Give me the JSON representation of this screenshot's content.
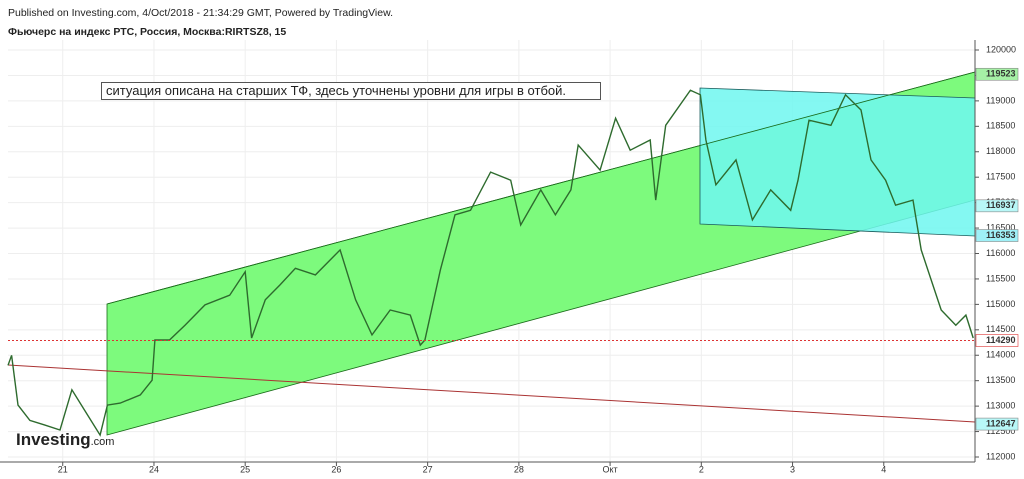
{
  "header": {
    "published": "Published on Investing.com, 4/Oct/2018 - 21:34:29 GMT, Powered by TradingView.",
    "symbol": "Фьючерс на индекс РТС, Россия, Москва:RIRTSZ8, 15"
  },
  "annotation": "ситуация описана на старших ТФ, здесь уточнены уровни для игры в отбой.",
  "logo": {
    "brand": "Investing",
    "suffix": ".com"
  },
  "chart_data": {
    "type": "line",
    "xlim": [
      -0.6,
      10.0
    ],
    "xticks": [
      {
        "value": 0,
        "label": "21"
      },
      {
        "value": 1,
        "label": "24"
      },
      {
        "value": 2,
        "label": "25"
      },
      {
        "value": 3,
        "label": "26"
      },
      {
        "value": 4,
        "label": "27"
      },
      {
        "value": 5,
        "label": "28"
      },
      {
        "value": 6,
        "label": "Окт"
      },
      {
        "value": 7,
        "label": "2"
      },
      {
        "value": 8,
        "label": "3"
      },
      {
        "value": 9,
        "label": "4"
      }
    ],
    "ylim": [
      112000,
      120000
    ],
    "yticks": [
      112000,
      112500,
      113000,
      113500,
      114000,
      114500,
      115000,
      115500,
      116000,
      116500,
      117000,
      117500,
      118000,
      118500,
      119000,
      119500,
      120000
    ],
    "series": [
      {
        "color": "#2e6b2e",
        "x": [
          -0.6,
          -0.56,
          -0.49,
          -0.36,
          -0.2,
          -0.03,
          0.1,
          0.24,
          0.41,
          0.49,
          0.63,
          0.85,
          0.98,
          1.01,
          1.17,
          1.34,
          1.56,
          1.83,
          2.0,
          2.07,
          2.22,
          2.38,
          2.55,
          2.77,
          3.04,
          3.21,
          3.39,
          3.59,
          3.81,
          3.92,
          3.97,
          4.14,
          4.3,
          4.47,
          4.69,
          4.91,
          5.02,
          5.24,
          5.4,
          5.57,
          5.65,
          5.89,
          6.06,
          6.22,
          6.44,
          6.5,
          6.61,
          6.88,
          6.99,
          7.05,
          7.16,
          7.38,
          7.56,
          7.76,
          7.98,
          8.06,
          8.18,
          8.42,
          8.58,
          8.75,
          8.86,
          9.02,
          9.13,
          9.32,
          9.41,
          9.52,
          9.63,
          9.79,
          9.9,
          9.98
        ],
        "values": [
          113800,
          114000,
          113020,
          112720,
          112630,
          112530,
          113320,
          112920,
          112430,
          113020,
          113060,
          113220,
          113510,
          114300,
          114300,
          114590,
          114990,
          115180,
          115640,
          114340,
          115090,
          115380,
          115710,
          115580,
          116070,
          115090,
          114400,
          114890,
          114790,
          114200,
          114300,
          115680,
          116760,
          116850,
          117600,
          117440,
          116560,
          117250,
          116760,
          117250,
          118130,
          117640,
          118660,
          118030,
          118230,
          117050,
          118520,
          119210,
          119120,
          118230,
          117350,
          117840,
          116660,
          117250,
          116850,
          117440,
          118620,
          118520,
          119120,
          118820,
          117840,
          117440,
          116950,
          117050,
          116070,
          115480,
          114890,
          114590,
          114790,
          114340
        ]
      }
    ],
    "price_labels": [
      {
        "value": 119523,
        "color": "#a6f0a6"
      },
      {
        "value": 116937,
        "color": "#b8f7f7"
      },
      {
        "value": 116353,
        "color": "#9ff0f7"
      },
      {
        "value": 112647,
        "color": "#b8f7f7"
      },
      {
        "value": 114290,
        "color": "#ffffff"
      }
    ]
  }
}
